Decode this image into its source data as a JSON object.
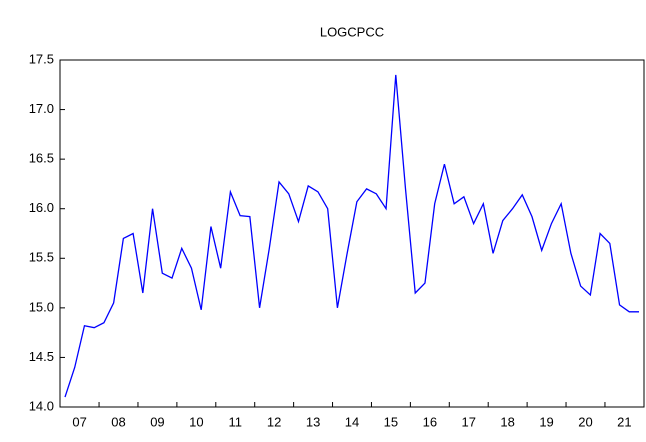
{
  "chart_data": {
    "type": "line",
    "title": "LOGCPCC",
    "categories": [
      null,
      "07",
      null,
      null,
      null,
      "08",
      null,
      null,
      null,
      "09",
      null,
      null,
      null,
      "10",
      null,
      null,
      null,
      "11",
      null,
      null,
      null,
      "12",
      null,
      null,
      null,
      "13",
      null,
      null,
      null,
      "14",
      null,
      null,
      null,
      "15",
      null,
      null,
      null,
      "16",
      null,
      null,
      null,
      "17",
      null,
      null,
      null,
      "18",
      null,
      null,
      null,
      "19",
      null,
      null,
      null,
      "20",
      null,
      null,
      null,
      "21",
      null,
      null
    ],
    "series": [
      {
        "name": "LOGCPCC",
        "color": "#0000ff",
        "values": [
          14.1,
          14.4,
          14.82,
          14.8,
          14.85,
          15.05,
          15.7,
          15.75,
          15.15,
          16.0,
          15.35,
          15.3,
          15.6,
          15.4,
          14.98,
          15.82,
          15.4,
          16.17,
          15.93,
          15.92,
          15.0,
          15.6,
          16.27,
          16.15,
          15.87,
          16.23,
          16.17,
          16.0,
          15.0,
          15.55,
          16.07,
          16.2,
          16.15,
          16.0,
          17.35,
          16.2,
          15.15,
          15.25,
          16.05,
          16.45,
          16.05,
          16.12,
          15.85,
          16.05,
          15.55,
          15.88,
          16.0,
          16.14,
          15.92,
          15.58,
          15.85,
          16.05,
          15.55,
          15.22,
          15.13,
          15.75,
          15.65,
          15.03,
          14.96,
          14.96
        ]
      }
    ],
    "ylim": [
      14,
      17.5
    ],
    "yticks": [
      {
        "value": 14,
        "label": "14.0"
      },
      14.5,
      {
        "value": 15,
        "label": "15.0"
      },
      15.5,
      {
        "value": 16,
        "label": "16.0"
      },
      16.5,
      {
        "value": 17,
        "label": "17.0"
      },
      17.5
    ]
  }
}
